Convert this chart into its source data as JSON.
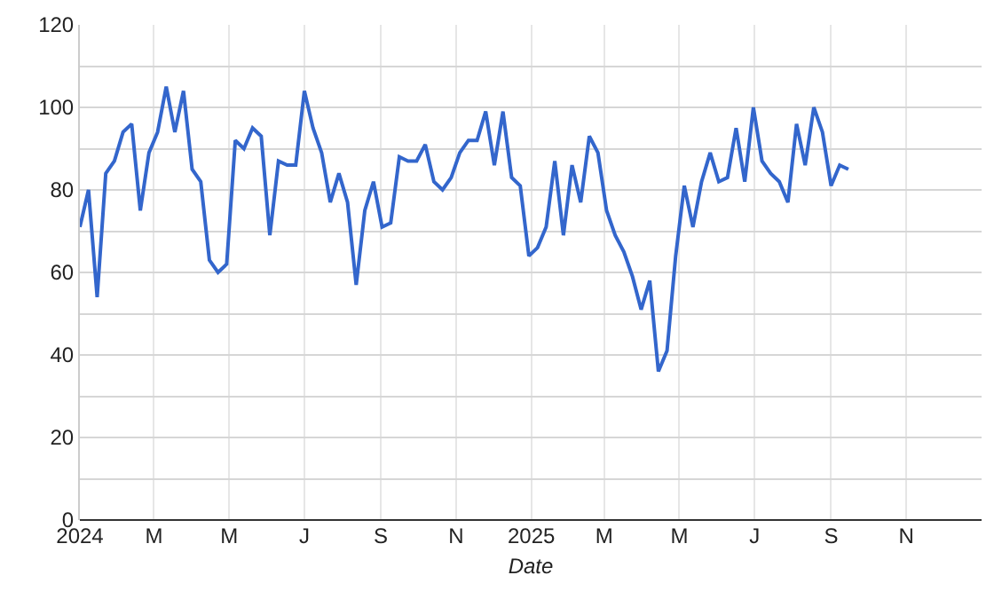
{
  "chart_data": {
    "type": "line",
    "xlabel": "Date",
    "x": [
      "2024-01-01",
      "2024-01-08",
      "2024-01-15",
      "2024-01-22",
      "2024-01-29",
      "2024-02-05",
      "2024-02-12",
      "2024-02-19",
      "2024-02-26",
      "2024-03-04",
      "2024-03-11",
      "2024-03-18",
      "2024-03-25",
      "2024-04-01",
      "2024-04-08",
      "2024-04-15",
      "2024-04-22",
      "2024-04-29",
      "2024-05-06",
      "2024-05-13",
      "2024-05-20",
      "2024-05-27",
      "2024-06-03",
      "2024-06-10",
      "2024-06-17",
      "2024-06-24",
      "2024-07-01",
      "2024-07-08",
      "2024-07-15",
      "2024-07-22",
      "2024-07-29",
      "2024-08-05",
      "2024-08-12",
      "2024-08-19",
      "2024-08-26",
      "2024-09-02",
      "2024-09-09",
      "2024-09-16",
      "2024-09-23",
      "2024-09-30",
      "2024-10-07",
      "2024-10-14",
      "2024-10-21",
      "2024-10-28",
      "2024-11-04",
      "2024-11-11",
      "2024-11-18",
      "2024-11-25",
      "2024-12-02",
      "2024-12-09",
      "2024-12-16",
      "2024-12-23",
      "2024-12-30",
      "2025-01-06",
      "2025-01-13",
      "2025-01-20",
      "2025-01-27",
      "2025-02-03",
      "2025-02-10",
      "2025-02-17",
      "2025-02-24",
      "2025-03-03",
      "2025-03-10",
      "2025-03-17",
      "2025-03-24",
      "2025-03-31",
      "2025-04-07",
      "2025-04-14",
      "2025-04-21",
      "2025-04-28",
      "2025-05-05",
      "2025-05-12",
      "2025-05-19",
      "2025-05-26",
      "2025-06-02",
      "2025-06-09",
      "2025-06-16",
      "2025-06-23",
      "2025-06-30",
      "2025-07-07",
      "2025-07-14",
      "2025-07-21",
      "2025-07-28",
      "2025-08-04",
      "2025-08-11",
      "2025-08-18",
      "2025-08-25",
      "2025-09-01",
      "2025-09-08",
      "2025-09-15"
    ],
    "series": [
      {
        "color": "#3366cc",
        "values": [
          71,
          80,
          54,
          84,
          87,
          94,
          96,
          75,
          89,
          94,
          105,
          94,
          104,
          85,
          82,
          63,
          60,
          62,
          92,
          90,
          95,
          93,
          69,
          87,
          86,
          86,
          104,
          95,
          89,
          77,
          84,
          77,
          57,
          75,
          82,
          71,
          72,
          88,
          87,
          87,
          91,
          82,
          80,
          83,
          89,
          92,
          92,
          99,
          86,
          99,
          83,
          81,
          64,
          66,
          71,
          87,
          69,
          86,
          77,
          93,
          89,
          75,
          69,
          65,
          59,
          51,
          58,
          36,
          41,
          64,
          81,
          71,
          82,
          89,
          82,
          83,
          95,
          82,
          100,
          87,
          84,
          82,
          77,
          96,
          86,
          100,
          94,
          81,
          86,
          85
        ]
      }
    ],
    "xlim": [
      "2024-01-01",
      "2026-01-01"
    ],
    "xticks": [
      {
        "value": "2024-01-01",
        "label": "2024"
      },
      {
        "value": "2024-03-01",
        "label": "M"
      },
      {
        "value": "2024-05-01",
        "label": "M"
      },
      {
        "value": "2024-07-01",
        "label": "J"
      },
      {
        "value": "2024-09-01",
        "label": "S"
      },
      {
        "value": "2024-11-01",
        "label": "N"
      },
      {
        "value": "2025-01-01",
        "label": "2025"
      },
      {
        "value": "2025-03-01",
        "label": "M"
      },
      {
        "value": "2025-05-01",
        "label": "M"
      },
      {
        "value": "2025-07-01",
        "label": "J"
      },
      {
        "value": "2025-09-01",
        "label": "S"
      },
      {
        "value": "2025-11-01",
        "label": "N"
      }
    ],
    "ylim": [
      0,
      120
    ],
    "yticks": [
      0,
      {
        "value": 10,
        "label": null
      },
      20,
      {
        "value": 30,
        "label": null
      },
      40,
      {
        "value": 50,
        "label": null
      },
      60,
      {
        "value": 70,
        "label": null
      },
      80,
      {
        "value": 90,
        "label": null
      },
      100,
      {
        "value": 110,
        "label": null
      },
      120
    ],
    "grid": true,
    "marker": "none",
    "line_style": "solid"
  }
}
